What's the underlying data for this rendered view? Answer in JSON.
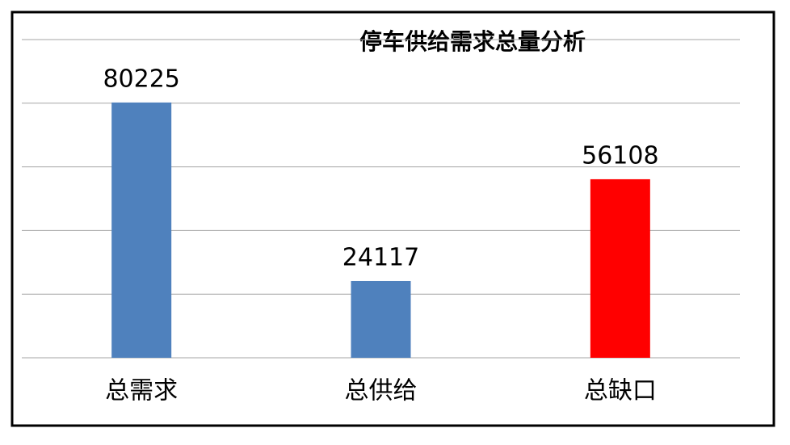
{
  "chart_data": {
    "type": "bar",
    "title": "停车供给需求总量分析",
    "categories": [
      "总需求",
      "总供给",
      "总缺口"
    ],
    "values": [
      80225,
      24117,
      56108
    ],
    "colors": [
      "#4f81bd",
      "#4f81bd",
      "#ff0000"
    ],
    "ylim": [
      0,
      100000
    ],
    "yticks": [
      0,
      20000,
      40000,
      60000,
      80000,
      100000
    ],
    "grid": true
  }
}
